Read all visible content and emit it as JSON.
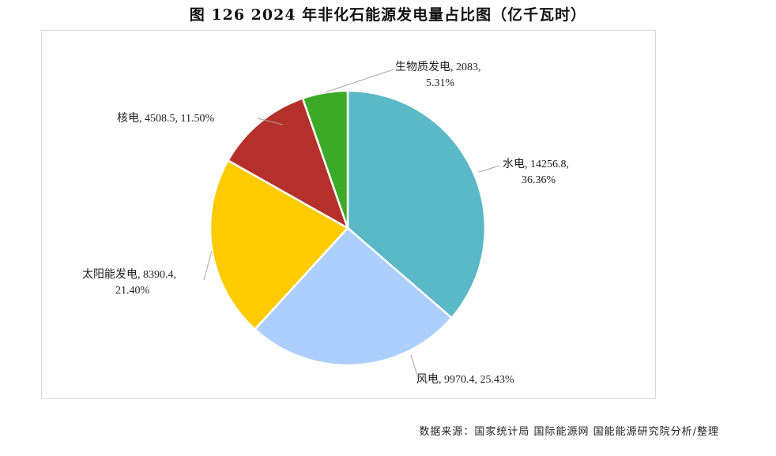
{
  "chart_data": {
    "type": "pie",
    "title": "图  126 2024 年非化石能源发电量占比图（亿千瓦时）",
    "start_angle": "12 o'clock",
    "direction": "clockwise",
    "slices": [
      {
        "name": "水电",
        "value": 14256.8,
        "percent": "36.36%",
        "color": "#5BB8C6",
        "label_line1": "水电, 14256.8,",
        "label_line2": "36.36%"
      },
      {
        "name": "风电",
        "value": 9970.4,
        "percent": "25.43%",
        "color": "#ADCFFD",
        "label_line1": "风电, 9970.4, 25.43%",
        "label_line2": ""
      },
      {
        "name": "太阳能发电",
        "value": 8390.4,
        "percent": "21.40%",
        "color": "#FDCB00",
        "label_line1": "太阳能发电, 8390.4,",
        "label_line2": "21.40%"
      },
      {
        "name": "核电",
        "value": 4508.5,
        "percent": "11.50%",
        "color": "#B5302A",
        "label_line1": "核电, 4508.5, 11.50%",
        "label_line2": ""
      },
      {
        "name": "生物质发电",
        "value": 2083,
        "percent": "5.31%",
        "color": "#3DAA27",
        "label_line1": "生物质发电, 2083,",
        "label_line2": "5.31%"
      }
    ],
    "legend": "none"
  },
  "source": "数据来源：国家统计局  国际能源网  国能能源研究院分析/整理"
}
